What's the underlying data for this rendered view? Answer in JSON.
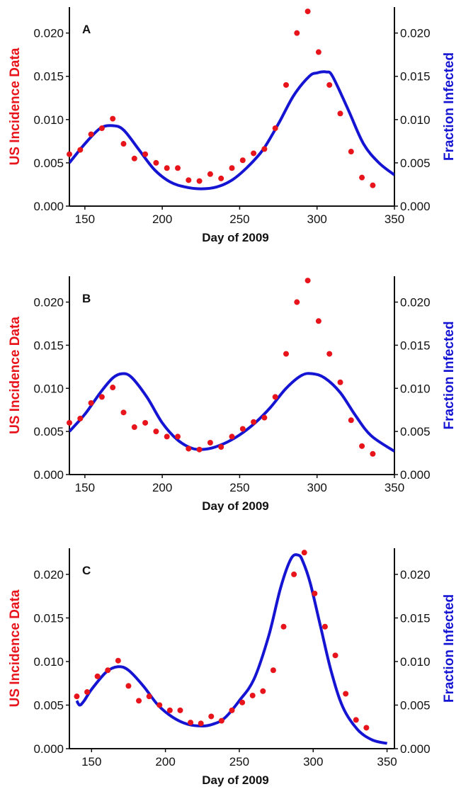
{
  "chart_data": [
    {
      "type": "line",
      "panel_label": "A",
      "xlabel": "Day of 2009",
      "ylabel_left": "US Incidence Data",
      "ylabel_right": "Fraction Infected",
      "xlim": [
        140,
        350
      ],
      "ylim": [
        0,
        0.023
      ],
      "x_ticks": [
        "150",
        "200",
        "250",
        "300",
        "350"
      ],
      "y_ticks": [
        "0.000",
        "0.005",
        "0.010",
        "0.015",
        "0.020"
      ],
      "series": [
        {
          "kind": "scatter",
          "axis": "left",
          "color": "#e8141b",
          "x": [
            140,
            147,
            154,
            161,
            168,
            175,
            182,
            189,
            196,
            203,
            210,
            217,
            224,
            231,
            238,
            245,
            252,
            259,
            266,
            273,
            280,
            287,
            294,
            301,
            308,
            315,
            322,
            329,
            336
          ],
          "y": [
            0.006,
            0.0065,
            0.0083,
            0.009,
            0.0101,
            0.0072,
            0.0055,
            0.006,
            0.005,
            0.0044,
            0.0044,
            0.003,
            0.0029,
            0.0037,
            0.0032,
            0.0044,
            0.0053,
            0.0061,
            0.0066,
            0.009,
            0.014,
            0.02,
            0.0225,
            0.0178,
            0.014,
            0.0107,
            0.0063,
            0.0033,
            0.0024
          ]
        },
        {
          "kind": "line",
          "axis": "right",
          "color": "#1414d2",
          "x": [
            140,
            150,
            160,
            168,
            175,
            185,
            195,
            205,
            215,
            225,
            235,
            245,
            255,
            265,
            275,
            285,
            295,
            300,
            306,
            310,
            320,
            330,
            340,
            350
          ],
          "y": [
            0.005,
            0.0072,
            0.009,
            0.0093,
            0.0088,
            0.0065,
            0.0042,
            0.0028,
            0.0022,
            0.002,
            0.0022,
            0.003,
            0.0045,
            0.0065,
            0.0095,
            0.0128,
            0.015,
            0.0154,
            0.0155,
            0.015,
            0.0112,
            0.0072,
            0.005,
            0.0036
          ]
        }
      ]
    },
    {
      "type": "line",
      "panel_label": "B",
      "xlabel": "Day of 2009",
      "ylabel_left": "US Incidence Data",
      "ylabel_right": "Fraction Infected",
      "xlim": [
        140,
        350
      ],
      "ylim": [
        0,
        0.023
      ],
      "x_ticks": [
        "150",
        "200",
        "250",
        "300",
        "350"
      ],
      "y_ticks": [
        "0.000",
        "0.005",
        "0.010",
        "0.015",
        "0.020"
      ],
      "series": [
        {
          "kind": "scatter",
          "axis": "left",
          "color": "#e8141b",
          "x": [
            140,
            147,
            154,
            161,
            168,
            175,
            182,
            189,
            196,
            203,
            210,
            217,
            224,
            231,
            238,
            245,
            252,
            259,
            266,
            273,
            280,
            287,
            294,
            301,
            308,
            315,
            322,
            329,
            336
          ],
          "y": [
            0.006,
            0.0065,
            0.0083,
            0.009,
            0.0101,
            0.0072,
            0.0055,
            0.006,
            0.005,
            0.0044,
            0.0044,
            0.003,
            0.0029,
            0.0037,
            0.0032,
            0.0044,
            0.0053,
            0.0061,
            0.0066,
            0.009,
            0.014,
            0.02,
            0.0225,
            0.0178,
            0.014,
            0.0107,
            0.0063,
            0.0033,
            0.0024
          ]
        },
        {
          "kind": "line",
          "axis": "right",
          "color": "#1414d2",
          "x": [
            140,
            150,
            160,
            168,
            174,
            180,
            190,
            200,
            210,
            220,
            230,
            240,
            250,
            260,
            270,
            280,
            290,
            297,
            305,
            315,
            325,
            335,
            350
          ],
          "y": [
            0.005,
            0.007,
            0.0095,
            0.0112,
            0.0117,
            0.0113,
            0.009,
            0.006,
            0.004,
            0.003,
            0.003,
            0.0036,
            0.0046,
            0.006,
            0.0078,
            0.01,
            0.0115,
            0.0117,
            0.0112,
            0.0095,
            0.0068,
            0.0045,
            0.0027
          ]
        }
      ]
    },
    {
      "type": "line",
      "panel_label": "C",
      "xlabel": "Day of 2009",
      "ylabel_left": "US Incidence Data",
      "ylabel_right": "Fraction Infected",
      "xlim": [
        135,
        355
      ],
      "ylim": [
        0,
        0.023
      ],
      "x_ticks": [
        "150",
        "200",
        "250",
        "300",
        "350"
      ],
      "y_ticks": [
        "0.000",
        "0.005",
        "0.010",
        "0.015",
        "0.020"
      ],
      "series": [
        {
          "kind": "scatter",
          "axis": "left",
          "color": "#e8141b",
          "x": [
            140,
            147,
            154,
            161,
            168,
            175,
            182,
            189,
            196,
            203,
            210,
            217,
            224,
            231,
            238,
            245,
            252,
            259,
            266,
            273,
            280,
            287,
            294,
            301,
            308,
            315,
            322,
            329,
            336
          ],
          "y": [
            0.006,
            0.0065,
            0.0083,
            0.009,
            0.0101,
            0.0072,
            0.0055,
            0.006,
            0.005,
            0.0044,
            0.0044,
            0.003,
            0.0029,
            0.0037,
            0.0032,
            0.0044,
            0.0053,
            0.0061,
            0.0066,
            0.009,
            0.014,
            0.02,
            0.0225,
            0.0178,
            0.014,
            0.0107,
            0.0063,
            0.0033,
            0.0024
          ]
        },
        {
          "kind": "line",
          "axis": "right",
          "color": "#1414d2",
          "x": [
            140,
            142,
            145,
            150,
            160,
            168,
            175,
            185,
            195,
            205,
            215,
            225,
            232,
            240,
            250,
            260,
            270,
            278,
            285,
            290,
            293,
            298,
            305,
            312,
            320,
            330,
            340,
            350
          ],
          "y": [
            0.0055,
            0.005,
            0.0055,
            0.0068,
            0.0088,
            0.0094,
            0.009,
            0.0072,
            0.005,
            0.0036,
            0.0028,
            0.0026,
            0.0028,
            0.0035,
            0.0055,
            0.008,
            0.013,
            0.0185,
            0.0218,
            0.0222,
            0.0215,
            0.019,
            0.014,
            0.009,
            0.0048,
            0.0022,
            0.001,
            0.0006
          ]
        }
      ]
    }
  ]
}
